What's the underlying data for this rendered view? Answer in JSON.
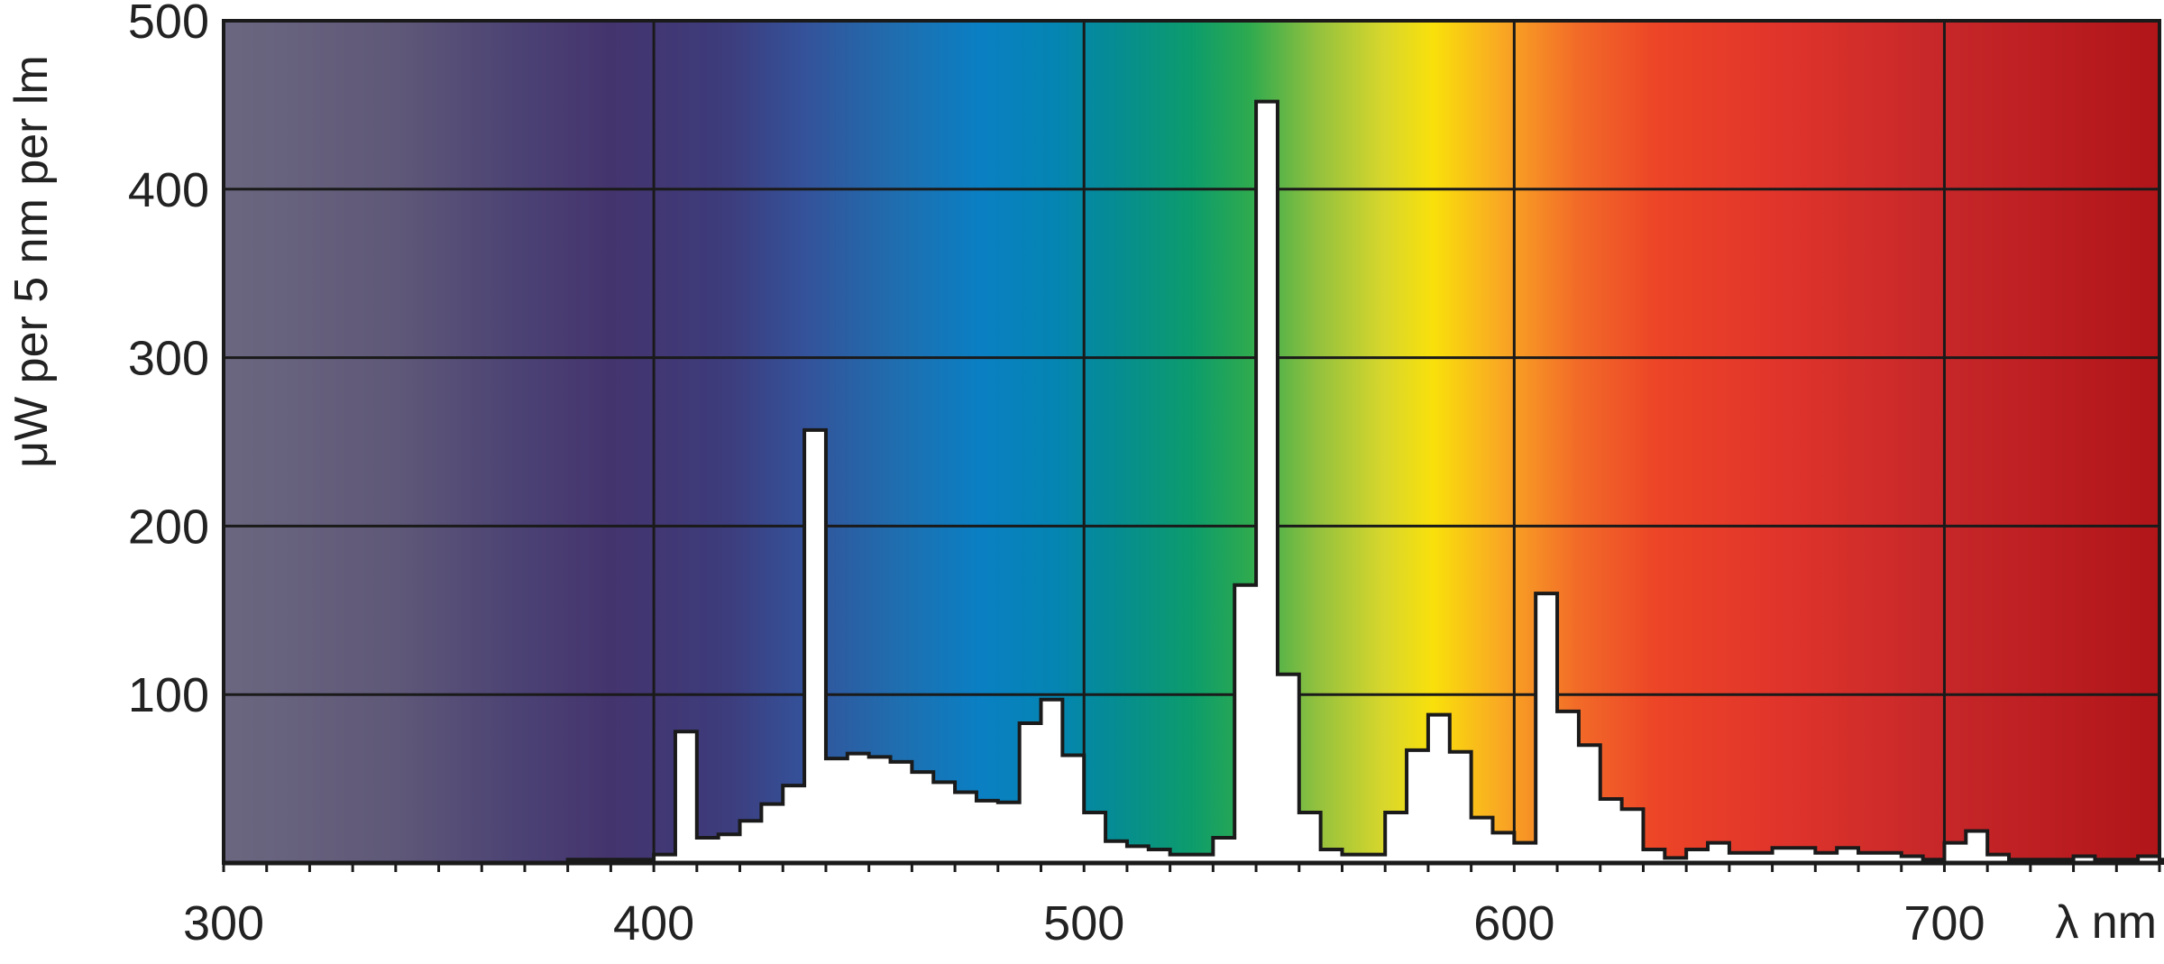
{
  "chart_data": {
    "type": "area",
    "title": "",
    "ylabel": "μW per 5 nm per lm",
    "xlabel": "λ nm",
    "xlim": [
      300,
      750
    ],
    "ylim": [
      0,
      500
    ],
    "x_ticks": [
      300,
      400,
      500,
      600,
      700
    ],
    "x_tick_labels": [
      "300",
      "400",
      "500",
      "600",
      "700"
    ],
    "y_ticks": [
      100,
      200,
      300,
      400,
      500
    ],
    "y_tick_labels": [
      "100",
      "200",
      "300",
      "400",
      "500"
    ],
    "grid": true,
    "background": "visible spectrum color gradient",
    "fill_color": "#ffffff",
    "series": [
      {
        "bin_width_nm": 5,
        "bins": [
          [
            380,
            2
          ],
          [
            385,
            2
          ],
          [
            390,
            2
          ],
          [
            395,
            2
          ],
          [
            400,
            5
          ],
          [
            405,
            78
          ],
          [
            410,
            15
          ],
          [
            415,
            17
          ],
          [
            420,
            25
          ],
          [
            425,
            35
          ],
          [
            430,
            46
          ],
          [
            435,
            257
          ],
          [
            440,
            62
          ],
          [
            445,
            65
          ],
          [
            450,
            63
          ],
          [
            455,
            60
          ],
          [
            460,
            54
          ],
          [
            465,
            48
          ],
          [
            470,
            42
          ],
          [
            475,
            37
          ],
          [
            480,
            36
          ],
          [
            485,
            83
          ],
          [
            490,
            97
          ],
          [
            495,
            64
          ],
          [
            500,
            30
          ],
          [
            505,
            13
          ],
          [
            510,
            10
          ],
          [
            515,
            8
          ],
          [
            520,
            5
          ],
          [
            525,
            5
          ],
          [
            530,
            15
          ],
          [
            535,
            165
          ],
          [
            540,
            452
          ],
          [
            545,
            112
          ],
          [
            550,
            30
          ],
          [
            555,
            8
          ],
          [
            560,
            5
          ],
          [
            565,
            5
          ],
          [
            570,
            30
          ],
          [
            575,
            67
          ],
          [
            580,
            88
          ],
          [
            585,
            66
          ],
          [
            590,
            27
          ],
          [
            595,
            18
          ],
          [
            600,
            12
          ],
          [
            605,
            160
          ],
          [
            610,
            90
          ],
          [
            615,
            70
          ],
          [
            620,
            38
          ],
          [
            625,
            32
          ],
          [
            630,
            8
          ],
          [
            635,
            3
          ],
          [
            640,
            8
          ],
          [
            645,
            12
          ],
          [
            650,
            6
          ],
          [
            655,
            6
          ],
          [
            660,
            9
          ],
          [
            665,
            9
          ],
          [
            670,
            6
          ],
          [
            675,
            9
          ],
          [
            680,
            6
          ],
          [
            685,
            6
          ],
          [
            690,
            4
          ],
          [
            695,
            2
          ],
          [
            700,
            12
          ],
          [
            705,
            19
          ],
          [
            710,
            5
          ],
          [
            715,
            2
          ],
          [
            720,
            2
          ],
          [
            725,
            2
          ],
          [
            730,
            4
          ],
          [
            735,
            2
          ],
          [
            740,
            2
          ],
          [
            745,
            4
          ],
          [
            750,
            2
          ]
        ]
      }
    ]
  }
}
